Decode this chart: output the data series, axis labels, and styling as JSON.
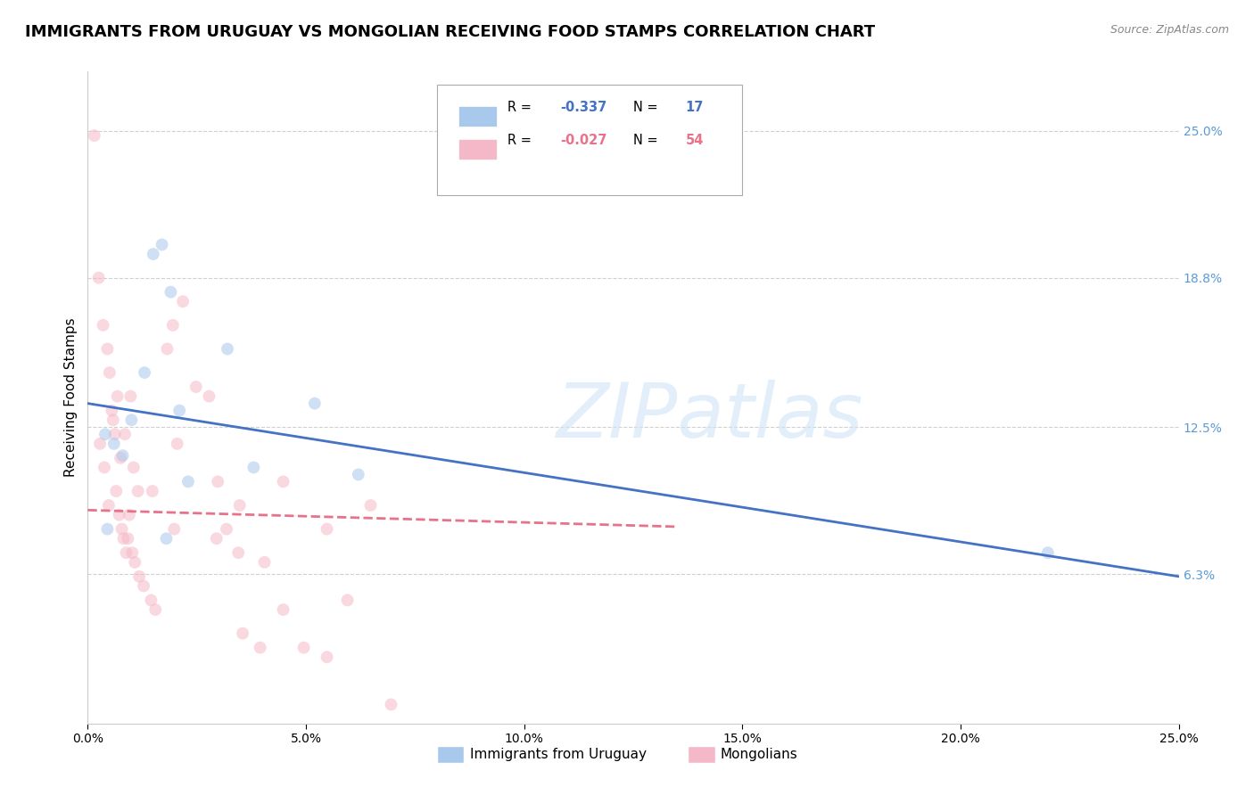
{
  "title": "IMMIGRANTS FROM URUGUAY VS MONGOLIAN RECEIVING FOOD STAMPS CORRELATION CHART",
  "source": "Source: ZipAtlas.com",
  "ylabel": "Receiving Food Stamps",
  "yticks": [
    6.3,
    12.5,
    18.8,
    25.0
  ],
  "ytick_labels": [
    "6.3%",
    "12.5%",
    "18.8%",
    "25.0%"
  ],
  "xticks": [
    0.0,
    5.0,
    10.0,
    15.0,
    20.0,
    25.0
  ],
  "xtick_labels": [
    "0.0%",
    "5.0%",
    "10.0%",
    "15.0%",
    "20.0%",
    "25.0%"
  ],
  "xlim": [
    0.0,
    25.0
  ],
  "ylim": [
    0.0,
    27.5
  ],
  "watermark_text": "ZIPatlas",
  "blue_line_x": [
    0.0,
    25.0
  ],
  "blue_line_y": [
    13.5,
    6.2
  ],
  "pink_line_x": [
    0.0,
    13.5
  ],
  "pink_line_y": [
    9.0,
    8.3
  ],
  "blue_scatter_x": [
    0.4,
    0.6,
    0.8,
    1.0,
    1.3,
    1.5,
    1.7,
    1.9,
    2.1,
    2.3,
    3.2,
    3.8,
    5.2,
    6.2,
    1.8,
    0.45,
    22.0
  ],
  "blue_scatter_y": [
    12.2,
    11.8,
    11.3,
    12.8,
    14.8,
    19.8,
    20.2,
    18.2,
    13.2,
    10.2,
    15.8,
    10.8,
    13.5,
    10.5,
    7.8,
    8.2,
    7.2
  ],
  "pink_scatter_x": [
    0.15,
    0.25,
    0.35,
    0.45,
    0.5,
    0.55,
    0.62,
    0.65,
    0.72,
    0.78,
    0.82,
    0.88,
    0.92,
    0.95,
    1.02,
    1.08,
    1.18,
    1.28,
    1.45,
    1.55,
    1.82,
    1.95,
    2.05,
    2.18,
    2.48,
    2.78,
    2.98,
    3.18,
    3.45,
    3.55,
    3.95,
    4.05,
    4.48,
    4.95,
    5.48,
    5.95,
    6.48,
    0.28,
    0.38,
    0.48,
    0.58,
    0.68,
    0.75,
    0.85,
    0.98,
    1.05,
    1.15,
    1.48,
    1.98,
    2.95,
    3.48,
    4.48,
    5.48,
    6.95
  ],
  "pink_scatter_y": [
    24.8,
    18.8,
    16.8,
    15.8,
    14.8,
    13.2,
    12.2,
    9.8,
    8.8,
    8.2,
    7.8,
    7.2,
    7.8,
    8.8,
    7.2,
    6.8,
    6.2,
    5.8,
    5.2,
    4.8,
    15.8,
    16.8,
    11.8,
    17.8,
    14.2,
    13.8,
    10.2,
    8.2,
    7.2,
    3.8,
    3.2,
    6.8,
    4.8,
    3.2,
    8.2,
    5.2,
    9.2,
    11.8,
    10.8,
    9.2,
    12.8,
    13.8,
    11.2,
    12.2,
    13.8,
    10.8,
    9.8,
    9.8,
    8.2,
    7.8,
    9.2,
    10.2,
    2.8,
    0.8
  ],
  "blue_color": "#a8c8ec",
  "pink_color": "#f5b8c8",
  "blue_line_color": "#4472c4",
  "pink_line_color": "#e8728a",
  "background_color": "#ffffff",
  "grid_color": "#d0d0d0",
  "title_fontsize": 13,
  "ylabel_fontsize": 11,
  "tick_fontsize": 10,
  "scatter_size": 100,
  "scatter_alpha": 0.55,
  "line_width": 2.0,
  "legend_R_blue": "-0.337",
  "legend_N_blue": "17",
  "legend_R_pink": "-0.027",
  "legend_N_pink": "54"
}
